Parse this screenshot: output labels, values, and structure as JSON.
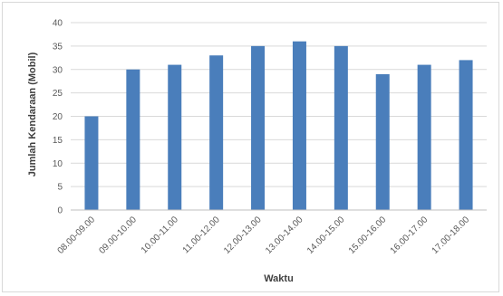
{
  "chart_data": {
    "type": "bar",
    "title": "",
    "xlabel": "Waktu",
    "ylabel": "Jumlah Kendaraan (Mobil)",
    "ylim": [
      0,
      40
    ],
    "yticks": [
      0,
      5,
      10,
      15,
      20,
      25,
      30,
      35,
      40
    ],
    "categories": [
      "08.00-09.00",
      "09.00-10.00",
      "10.00-11.00",
      "11.00-12.00",
      "12.00-13.00",
      "13.00-14.00",
      "14.00-15.00",
      "15.00-16.00",
      "16.00-17.00",
      "17.00-18.00"
    ],
    "values": [
      20,
      30,
      31,
      33,
      35,
      36,
      35,
      29,
      31,
      32
    ],
    "bar_color": "#4a7ebb",
    "gridlines": true,
    "legend": "none"
  }
}
